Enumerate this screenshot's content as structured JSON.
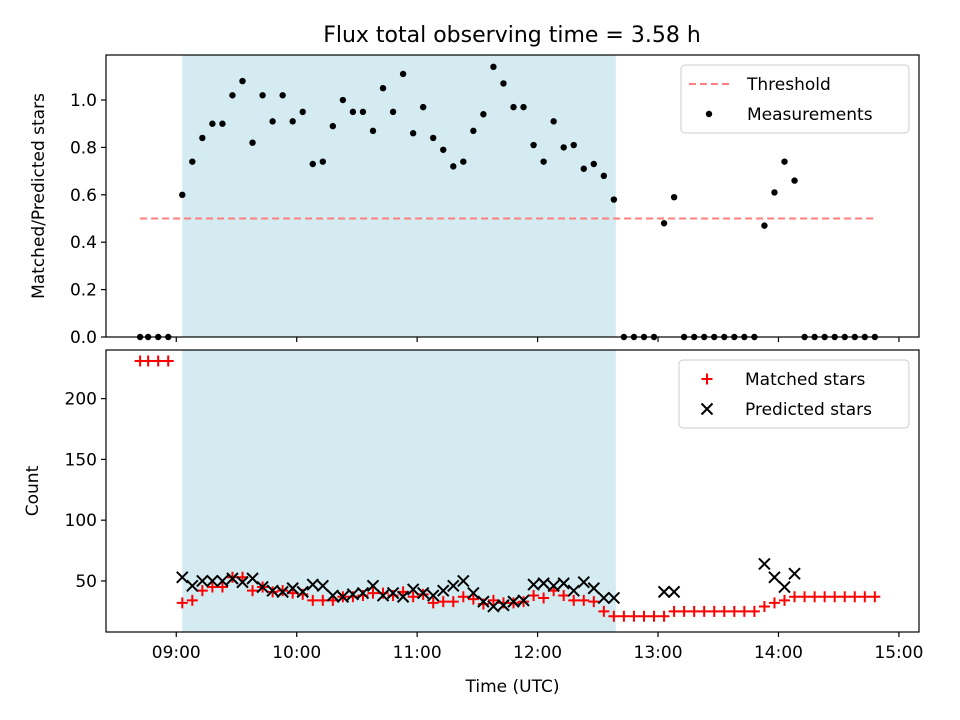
{
  "title": "Flux total observing time = 3.58 h",
  "colors": {
    "threshold": "#ff7f7f",
    "measurements": "#000000",
    "matched": "#ff0000",
    "predicted": "#000000",
    "observing_window": "#add8e6"
  },
  "chart_data": [
    {
      "type": "scatter",
      "ylabel": "Matched/Predicted stars",
      "ylim": [
        0,
        1.19
      ],
      "yticks": [
        0.0,
        0.2,
        0.4,
        0.6,
        0.8,
        1.0
      ],
      "ytick_labels": [
        "0.0",
        "0.2",
        "0.4",
        "0.6",
        "0.8",
        "1.0"
      ],
      "xlim": [
        "08:25",
        "15:10"
      ],
      "observing_window": [
        "09:03",
        "12:39"
      ],
      "legend_position": "top-right",
      "threshold": {
        "name": "Threshold",
        "x": [
          "08:42",
          "14:49"
        ],
        "value": 0.5
      },
      "series": [
        {
          "name": "Measurements",
          "points": [
            [
              "08:42",
              0.0
            ],
            [
              "08:46",
              0.0
            ],
            [
              "08:51",
              0.0
            ],
            [
              "08:56",
              0.0
            ],
            [
              "09:03",
              0.6
            ],
            [
              "09:08",
              0.74
            ],
            [
              "09:13",
              0.84
            ],
            [
              "09:18",
              0.9
            ],
            [
              "09:23",
              0.9
            ],
            [
              "09:28",
              1.02
            ],
            [
              "09:33",
              1.08
            ],
            [
              "09:38",
              0.82
            ],
            [
              "09:43",
              1.02
            ],
            [
              "09:48",
              0.91
            ],
            [
              "09:53",
              1.02
            ],
            [
              "09:58",
              0.91
            ],
            [
              "10:03",
              0.95
            ],
            [
              "10:08",
              0.73
            ],
            [
              "10:13",
              0.74
            ],
            [
              "10:18",
              0.89
            ],
            [
              "10:23",
              1.0
            ],
            [
              "10:28",
              0.95
            ],
            [
              "10:33",
              0.95
            ],
            [
              "10:38",
              0.87
            ],
            [
              "10:43",
              1.05
            ],
            [
              "10:48",
              0.95
            ],
            [
              "10:53",
              1.11
            ],
            [
              "10:58",
              0.86
            ],
            [
              "11:03",
              0.97
            ],
            [
              "11:08",
              0.84
            ],
            [
              "11:13",
              0.79
            ],
            [
              "11:18",
              0.72
            ],
            [
              "11:23",
              0.74
            ],
            [
              "11:28",
              0.87
            ],
            [
              "11:33",
              0.94
            ],
            [
              "11:38",
              1.14
            ],
            [
              "11:43",
              1.07
            ],
            [
              "11:48",
              0.97
            ],
            [
              "11:53",
              0.97
            ],
            [
              "11:58",
              0.81
            ],
            [
              "12:03",
              0.74
            ],
            [
              "12:08",
              0.91
            ],
            [
              "12:13",
              0.8
            ],
            [
              "12:18",
              0.81
            ],
            [
              "12:23",
              0.71
            ],
            [
              "12:28",
              0.73
            ],
            [
              "12:33",
              0.68
            ],
            [
              "12:38",
              0.58
            ],
            [
              "12:43",
              0.0
            ],
            [
              "12:48",
              0.0
            ],
            [
              "12:53",
              0.0
            ],
            [
              "12:58",
              0.0
            ],
            [
              "13:03",
              0.48
            ],
            [
              "13:08",
              0.59
            ],
            [
              "13:13",
              0.0
            ],
            [
              "13:18",
              0.0
            ],
            [
              "13:23",
              0.0
            ],
            [
              "13:28",
              0.0
            ],
            [
              "13:33",
              0.0
            ],
            [
              "13:38",
              0.0
            ],
            [
              "13:43",
              0.0
            ],
            [
              "13:48",
              0.0
            ],
            [
              "13:53",
              0.47
            ],
            [
              "13:58",
              0.61
            ],
            [
              "14:03",
              0.74
            ],
            [
              "14:08",
              0.66
            ],
            [
              "14:13",
              0.0
            ],
            [
              "14:18",
              0.0
            ],
            [
              "14:23",
              0.0
            ],
            [
              "14:28",
              0.0
            ],
            [
              "14:33",
              0.0
            ],
            [
              "14:38",
              0.0
            ],
            [
              "14:43",
              0.0
            ],
            [
              "14:48",
              0.0
            ]
          ]
        }
      ]
    },
    {
      "type": "scatter",
      "ylabel": "Count",
      "xlabel": "Time (UTC)",
      "ylim": [
        8,
        240
      ],
      "yticks": [
        50,
        100,
        150,
        200
      ],
      "ytick_labels": [
        "50",
        "100",
        "150",
        "200"
      ],
      "xlim": [
        "08:25",
        "15:10"
      ],
      "xticks": [
        "09:00",
        "10:00",
        "11:00",
        "12:00",
        "13:00",
        "14:00",
        "15:00"
      ],
      "xtick_labels": [
        "09:00",
        "10:00",
        "11:00",
        "12:00",
        "13:00",
        "14:00",
        "15:00"
      ],
      "observing_window": [
        "09:03",
        "12:39"
      ],
      "legend_position": "top-right",
      "series": [
        {
          "name": "Matched stars",
          "points": [
            [
              "08:42",
              231
            ],
            [
              "08:46",
              231
            ],
            [
              "08:51",
              231
            ],
            [
              "08:56",
              231
            ],
            [
              "09:03",
              32
            ],
            [
              "09:08",
              34
            ],
            [
              "09:13",
              42
            ],
            [
              "09:18",
              45
            ],
            [
              "09:23",
              45
            ],
            [
              "09:28",
              53
            ],
            [
              "09:33",
              53
            ],
            [
              "09:38",
              42
            ],
            [
              "09:43",
              45
            ],
            [
              "09:48",
              41
            ],
            [
              "09:53",
              42
            ],
            [
              "09:58",
              40
            ],
            [
              "10:03",
              39
            ],
            [
              "10:08",
              34
            ],
            [
              "10:13",
              34
            ],
            [
              "10:18",
              34
            ],
            [
              "10:23",
              37
            ],
            [
              "10:28",
              37
            ],
            [
              "10:33",
              38
            ],
            [
              "10:38",
              40
            ],
            [
              "10:43",
              40
            ],
            [
              "10:48",
              38
            ],
            [
              "10:53",
              41
            ],
            [
              "10:58",
              37
            ],
            [
              "11:03",
              39
            ],
            [
              "11:08",
              32
            ],
            [
              "11:13",
              33
            ],
            [
              "11:18",
              33
            ],
            [
              "11:23",
              37
            ],
            [
              "11:28",
              35
            ],
            [
              "11:33",
              31
            ],
            [
              "11:38",
              34
            ],
            [
              "11:43",
              32
            ],
            [
              "11:48",
              32
            ],
            [
              "11:53",
              33
            ],
            [
              "11:58",
              38
            ],
            [
              "12:03",
              36
            ],
            [
              "12:08",
              42
            ],
            [
              "12:13",
              38
            ],
            [
              "12:18",
              34
            ],
            [
              "12:23",
              34
            ],
            [
              "12:28",
              33
            ],
            [
              "12:33",
              25
            ],
            [
              "12:38",
              21
            ],
            [
              "12:43",
              21
            ],
            [
              "12:48",
              21
            ],
            [
              "12:53",
              21
            ],
            [
              "12:58",
              21
            ],
            [
              "13:03",
              21
            ],
            [
              "13:08",
              25
            ],
            [
              "13:13",
              25
            ],
            [
              "13:18",
              25
            ],
            [
              "13:23",
              25
            ],
            [
              "13:28",
              25
            ],
            [
              "13:33",
              25
            ],
            [
              "13:38",
              25
            ],
            [
              "13:43",
              25
            ],
            [
              "13:48",
              25
            ],
            [
              "13:53",
              29
            ],
            [
              "13:58",
              32
            ],
            [
              "14:03",
              34
            ],
            [
              "14:08",
              37
            ],
            [
              "14:13",
              37
            ],
            [
              "14:18",
              37
            ],
            [
              "14:23",
              37
            ],
            [
              "14:28",
              37
            ],
            [
              "14:33",
              37
            ],
            [
              "14:38",
              37
            ],
            [
              "14:43",
              37
            ],
            [
              "14:48",
              37
            ]
          ]
        },
        {
          "name": "Predicted stars",
          "points": [
            [
              "09:03",
              53
            ],
            [
              "09:08",
              46
            ],
            [
              "09:13",
              50
            ],
            [
              "09:18",
              50
            ],
            [
              "09:23",
              50
            ],
            [
              "09:28",
              52
            ],
            [
              "09:33",
              49
            ],
            [
              "09:38",
              52
            ],
            [
              "09:43",
              45
            ],
            [
              "09:48",
              42
            ],
            [
              "09:53",
              41
            ],
            [
              "09:58",
              44
            ],
            [
              "10:03",
              41
            ],
            [
              "10:08",
              47
            ],
            [
              "10:13",
              46
            ],
            [
              "10:18",
              38
            ],
            [
              "10:23",
              37
            ],
            [
              "10:28",
              39
            ],
            [
              "10:33",
              40
            ],
            [
              "10:38",
              46
            ],
            [
              "10:43",
              38
            ],
            [
              "10:48",
              40
            ],
            [
              "10:53",
              37
            ],
            [
              "10:58",
              43
            ],
            [
              "11:03",
              40
            ],
            [
              "11:08",
              38
            ],
            [
              "11:13",
              42
            ],
            [
              "11:18",
              46
            ],
            [
              "11:23",
              50
            ],
            [
              "11:28",
              40
            ],
            [
              "11:33",
              33
            ],
            [
              "11:38",
              29
            ],
            [
              "11:43",
              30
            ],
            [
              "11:48",
              33
            ],
            [
              "11:53",
              34
            ],
            [
              "11:58",
              47
            ],
            [
              "12:03",
              48
            ],
            [
              "12:08",
              46
            ],
            [
              "12:13",
              48
            ],
            [
              "12:18",
              42
            ],
            [
              "12:23",
              49
            ],
            [
              "12:28",
              44
            ],
            [
              "12:33",
              36
            ],
            [
              "12:38",
              36
            ],
            [
              "13:03",
              41
            ],
            [
              "13:08",
              41
            ],
            [
              "13:53",
              64
            ],
            [
              "13:58",
              53
            ],
            [
              "14:03",
              45
            ],
            [
              "14:08",
              56
            ]
          ]
        }
      ]
    }
  ]
}
